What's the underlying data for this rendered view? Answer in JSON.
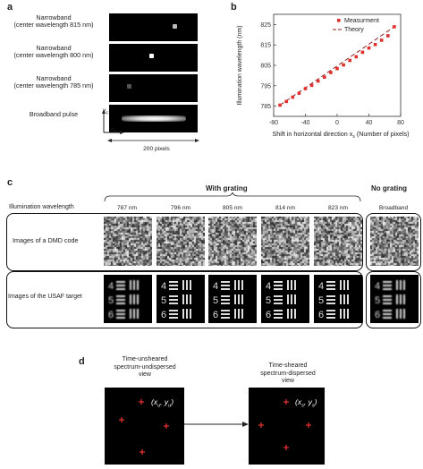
{
  "panels": {
    "a": {
      "label": "a",
      "rows": [
        {
          "text": "Narrowband\n(center wavelength 815 nm)"
        },
        {
          "text": "Narrowband\n(center wavelength 800 nm)"
        },
        {
          "text": "Narrowband\n(center wavelength 785 nm)"
        },
        {
          "text": "Broadband pulse"
        }
      ],
      "axis_y": "y",
      "axis_y_sub": "s",
      "axis_x": "x",
      "axis_x_sub": "s",
      "scale_text": "200 pixels"
    },
    "b": {
      "label": "b",
      "ylabel": "Illumination wavelength (nm)",
      "xlabel": "Shift in horizontal direction x",
      "xlabel_sub": "s",
      "xlabel_tail": " (Number of pixels)",
      "legend_measure": "Measurment",
      "legend_theory": "Theory"
    },
    "c": {
      "label": "c",
      "header_left": "Illumination wavelength",
      "with_grating": "With grating",
      "no_grating": "No grating",
      "wavelengths": [
        "787 nm",
        "796 nm",
        "805 nm",
        "814 nm",
        "823 nm"
      ],
      "broadband": "Broadband",
      "row1": "Images of a DMD code",
      "row2": "Images of the USAF target",
      "usaf_digits": [
        "4",
        "5",
        "6"
      ]
    },
    "d": {
      "label": "d",
      "left_title": "Time-unsheared\nspectrum-undispersed\nview",
      "right_title": "Time-sheared\nspectrum-dispersed\nview",
      "left_point_prefix": "(x",
      "left_point_sub1": "u",
      "left_point_mid": ", y",
      "left_point_sub2": "u",
      "left_point_suffix": ")",
      "right_point_prefix": "(x",
      "right_point_sub1": "s",
      "right_point_mid": ", y",
      "right_point_sub2": "s",
      "right_point_suffix": ")"
    }
  },
  "chart_data": {
    "type": "scatter",
    "xlabel": "Shift in horizontal direction xs (Number of pixels)",
    "ylabel": "Illumination wavelength (nm)",
    "xlim": [
      -80,
      80
    ],
    "ylim": [
      780,
      830
    ],
    "xticks": [
      -80,
      -40,
      0,
      40,
      80
    ],
    "yticks": [
      785,
      795,
      805,
      815,
      825
    ],
    "legend_placement": "top-right",
    "series": [
      {
        "name": "Measurment",
        "x": [
          -72,
          -64,
          -56,
          -48,
          -40,
          -32,
          -24,
          -16,
          -8,
          0,
          8,
          16,
          24,
          32,
          40,
          48,
          56,
          64,
          72
        ],
        "y": [
          785.5,
          787.3,
          789.4,
          791.3,
          793.6,
          795.2,
          797.3,
          799.2,
          801.5,
          803.4,
          805.2,
          807.4,
          809.2,
          811.4,
          813.5,
          815.2,
          817.3,
          819.5,
          823.9
        ]
      },
      {
        "name": "Theory",
        "x": [
          -72,
          72
        ],
        "y": [
          785.5,
          823.9
        ]
      }
    ]
  },
  "colors": {
    "marker": "#e0302e",
    "theory": "#8b1e1e",
    "cross": "#e0302e"
  }
}
